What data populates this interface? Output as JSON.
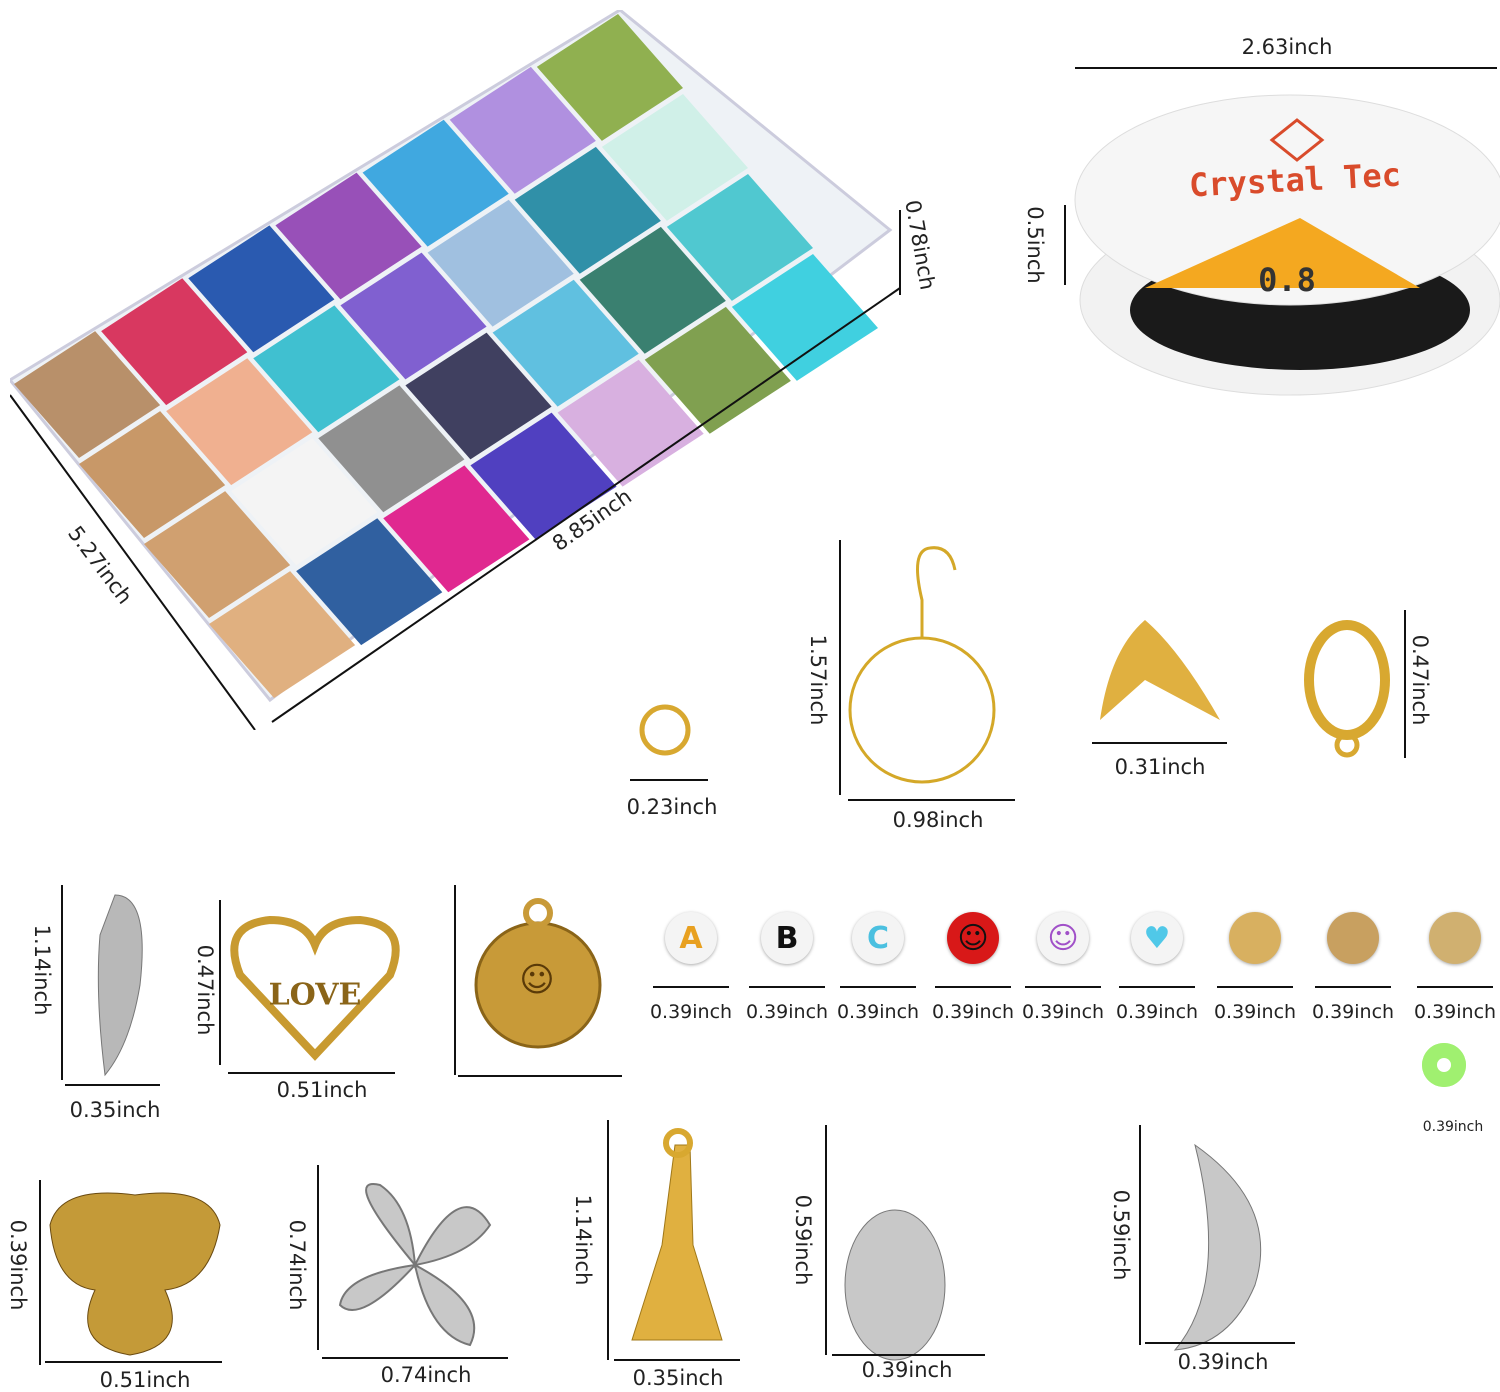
{
  "spool": {
    "brand": "Crystal Tec",
    "size": "0.8",
    "width_label": "2.63inch",
    "height_label": "0.5inch"
  },
  "bead_box": {
    "depth_label": "0.78inch",
    "length_label": "8.85inch",
    "width_label": "5.27inch"
  },
  "findings": {
    "jump_ring": "0.23inch",
    "earring_hoop_height": "1.57inch",
    "earring_hoop_width": "0.98inch",
    "bead_tip": "0.31inch",
    "lobster_clasp": "0.47inch"
  },
  "charms_row1": {
    "wing_height": "1.14inch",
    "wing_width": "0.35inch",
    "love_heart_height": "0.47inch",
    "love_heart_width": "0.51inch",
    "love_text": "LOVE"
  },
  "beads": [
    {
      "glyph": "A",
      "label": "0.39inch",
      "color": "#e8a020"
    },
    {
      "glyph": "B",
      "label": "0.39inch",
      "color": "#111111"
    },
    {
      "glyph": "C",
      "label": "0.39inch",
      "color": "#4bc0e0"
    },
    {
      "glyph": "☺",
      "label": "0.39inch",
      "color": "#d81818"
    },
    {
      "glyph": "☺",
      "label": "0.39inch",
      "color": "#a050c8"
    },
    {
      "glyph": "♥",
      "label": "0.39inch",
      "color": "#50c8e8"
    },
    {
      "glyph": "",
      "label": "0.39inch",
      "color": "#d8b060"
    },
    {
      "glyph": "",
      "label": "0.39inch",
      "color": "#c8a060"
    },
    {
      "glyph": "",
      "label": "0.39inch",
      "color": "#d0b070"
    }
  ],
  "glow_bead_label": "0.39inch",
  "charms_row2": {
    "butterfly_height": "0.39inch",
    "butterfly_width": "0.51inch",
    "clover_height": "0.74inch",
    "clover_width": "0.74inch",
    "tower_height": "1.14inch",
    "tower_width": "0.35inch",
    "mitten_height": "0.59inch",
    "mitten_width": "0.39inch",
    "moon_height": "0.59inch",
    "moon_width": "0.39inch"
  }
}
